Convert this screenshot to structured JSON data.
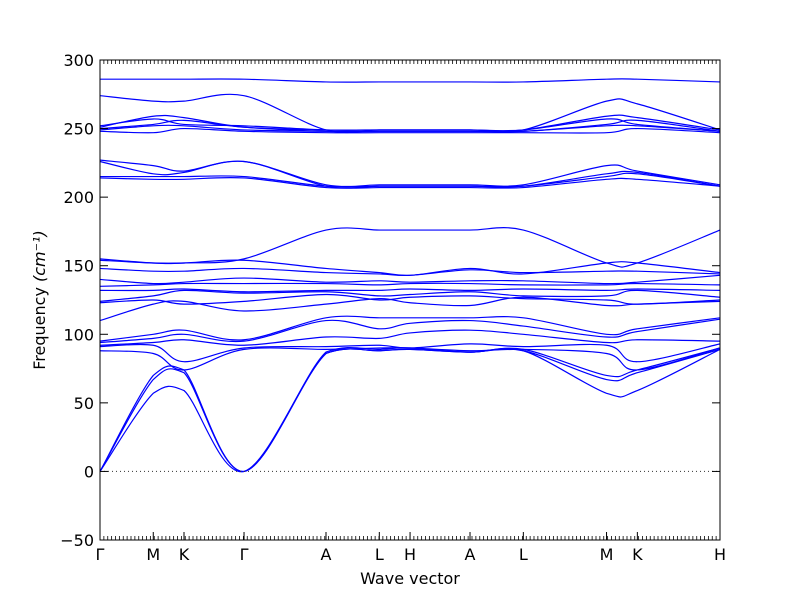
{
  "chart_data": {
    "type": "line",
    "title": "",
    "xlabel": "Wave vector",
    "ylabel": "Frequency",
    "ylabel_unit": "(cm⁻¹)",
    "ylim": [
      -50,
      300
    ],
    "yticks": [
      -50,
      0,
      50,
      100,
      150,
      200,
      250,
      300
    ],
    "grid": false,
    "legend": "none",
    "line_color": "#0000ff",
    "zero_line_color": "#333333",
    "path": {
      "labels": [
        "Γ",
        "M",
        "K",
        "Γ",
        "A",
        "L",
        "H",
        "A",
        "L",
        "M",
        "K",
        "H"
      ],
      "positions": [
        0,
        0.0859,
        0.1355,
        0.2323,
        0.3645,
        0.4505,
        0.5001,
        0.5968,
        0.6828,
        0.817,
        0.8667,
        1.0
      ]
    },
    "series_description": "phonon branches (blue), approximate values at high-symmetry points",
    "x": [
      0,
      0.0859,
      0.1355,
      0.2323,
      0.3645,
      0.4505,
      0.5001,
      0.5968,
      0.6828,
      0.817,
      0.8667,
      1.0
    ],
    "series": [
      {
        "values": [
          0,
          57,
          59,
          0,
          86,
          88,
          89,
          87,
          88,
          57,
          59,
          89
        ]
      },
      {
        "values": [
          0,
          67,
          72,
          0,
          86,
          88,
          89,
          87,
          88,
          67,
          72,
          89
        ]
      },
      {
        "values": [
          0,
          70,
          74,
          0,
          87,
          89,
          90,
          87,
          89,
          70,
          74,
          90
        ]
      },
      {
        "values": [
          88,
          86,
          74,
          89,
          89,
          90,
          90,
          88,
          89,
          86,
          74,
          90
        ]
      },
      {
        "values": [
          91,
          92,
          80,
          90,
          91,
          92,
          90,
          93,
          91,
          92,
          80,
          93
        ]
      },
      {
        "values": [
          92,
          94,
          96,
          92,
          98,
          97,
          101,
          103,
          100,
          94,
          96,
          95
        ]
      },
      {
        "values": [
          94,
          97,
          100,
          95,
          110,
          104,
          108,
          110,
          106,
          98,
          102,
          111
        ]
      },
      {
        "values": [
          95,
          100,
          103,
          96,
          112,
          112,
          112,
          112,
          112,
          100,
          104,
          112
        ]
      },
      {
        "values": [
          110,
          122,
          124,
          117,
          122,
          126,
          123,
          121,
          127,
          121,
          122,
          124
        ]
      },
      {
        "values": [
          123,
          125,
          122,
          124,
          129,
          125,
          127,
          128,
          126,
          125,
          122,
          125
        ]
      },
      {
        "values": [
          124,
          128,
          132,
          130,
          131,
          128,
          129,
          131,
          128,
          128,
          132,
          127
        ]
      },
      {
        "values": [
          132,
          132,
          133,
          131,
          132,
          132,
          133,
          132,
          133,
          132,
          133,
          132
        ]
      },
      {
        "values": [
          135,
          136,
          137,
          137,
          137,
          136,
          137,
          137,
          136,
          136,
          137,
          136
        ]
      },
      {
        "values": [
          140,
          137,
          138,
          141,
          138,
          139,
          138,
          139,
          139,
          137,
          138,
          143
        ]
      },
      {
        "values": [
          148,
          146,
          146,
          148,
          145,
          144,
          143,
          147,
          145,
          146,
          146,
          144
        ]
      },
      {
        "values": [
          154,
          152,
          152,
          154,
          148,
          145,
          143,
          148,
          144,
          152,
          152,
          145
        ]
      },
      {
        "values": [
          155,
          152,
          152,
          155,
          176,
          176,
          176,
          176,
          176,
          152,
          152,
          176
        ]
      },
      {
        "values": [
          214,
          213,
          213,
          214,
          207,
          207,
          207,
          207,
          207,
          213,
          213,
          208
        ]
      },
      {
        "values": [
          215,
          215,
          215,
          215,
          208,
          208,
          208,
          208,
          208,
          215,
          217,
          208
        ]
      },
      {
        "values": [
          226,
          217,
          218,
          226,
          208,
          208,
          208,
          208,
          208,
          217,
          218,
          208
        ]
      },
      {
        "values": [
          227,
          223,
          219,
          226,
          209,
          209,
          209,
          209,
          209,
          223,
          219,
          209
        ]
      },
      {
        "values": [
          248,
          247,
          250,
          248,
          247,
          247,
          247,
          247,
          247,
          247,
          250,
          247
        ]
      },
      {
        "values": [
          249,
          252,
          252,
          249,
          248,
          248,
          248,
          248,
          248,
          252,
          252,
          248
        ]
      },
      {
        "values": [
          250,
          253,
          256,
          251,
          248,
          248,
          248,
          248,
          248,
          253,
          256,
          248
        ]
      },
      {
        "values": [
          251,
          259,
          258,
          251,
          249,
          249,
          249,
          249,
          249,
          259,
          258,
          249
        ]
      },
      {
        "values": [
          252,
          257,
          253,
          252,
          249,
          249,
          249,
          249,
          249,
          257,
          253,
          248
        ]
      },
      {
        "values": [
          274,
          270,
          270,
          274,
          249,
          249,
          249,
          249,
          249,
          270,
          268,
          249
        ]
      },
      {
        "values": [
          286,
          286,
          286,
          286,
          284,
          284,
          284,
          284,
          284,
          286,
          286,
          284
        ]
      }
    ]
  }
}
